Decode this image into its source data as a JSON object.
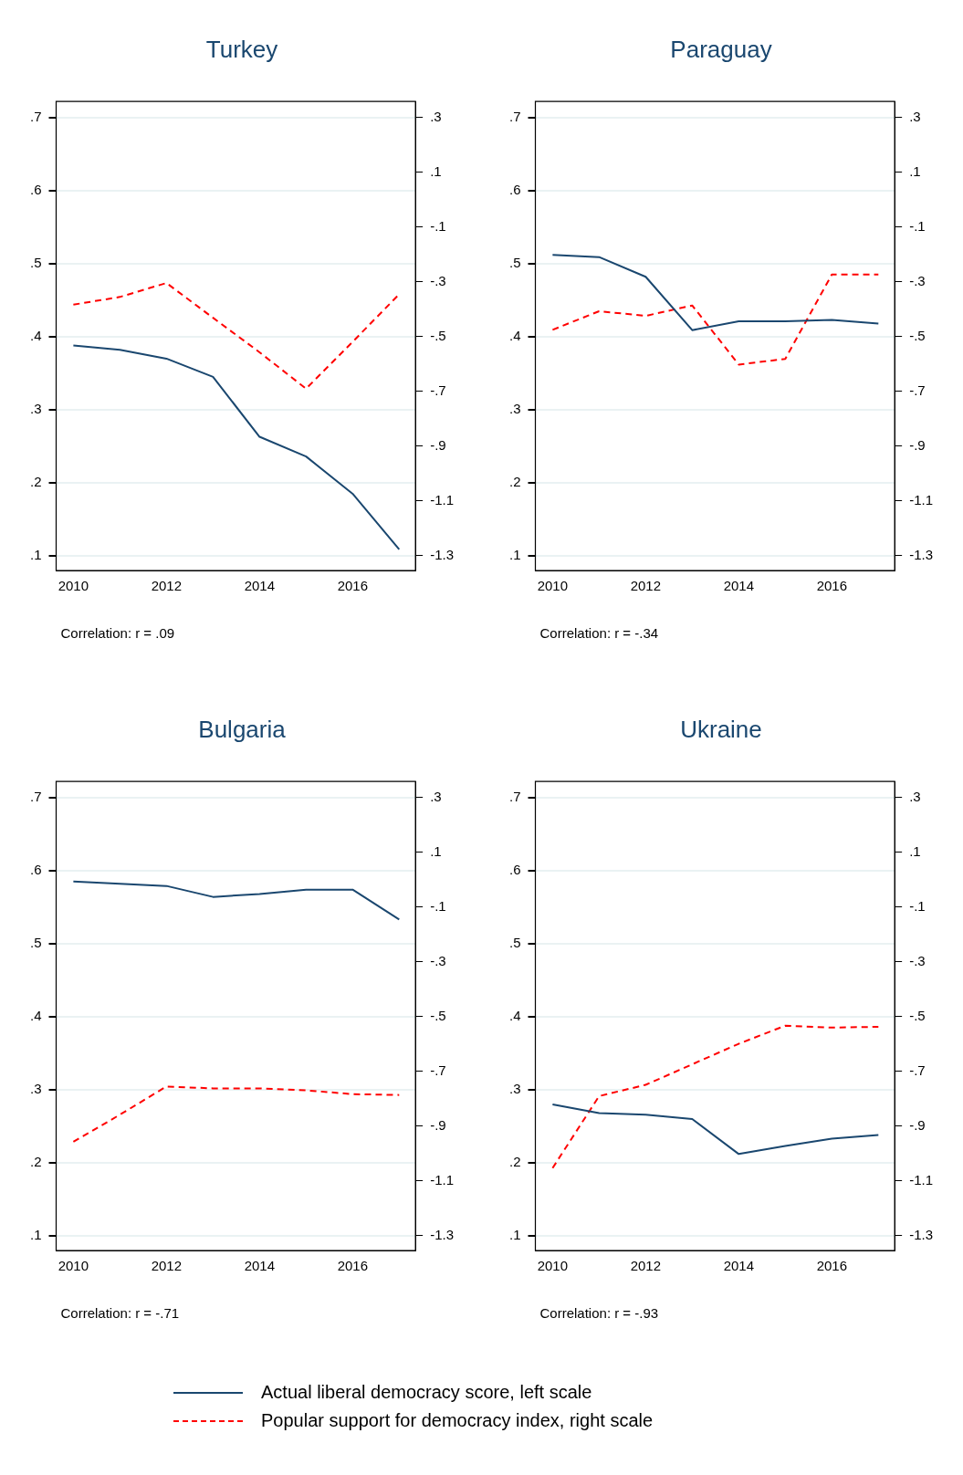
{
  "chart_data": [
    {
      "type": "line",
      "title": "Turkey",
      "x": [
        2010,
        2011,
        2012,
        2013,
        2014,
        2015,
        2016,
        2017
      ],
      "xlim": [
        2009.63,
        2017.35
      ],
      "xticks": [
        2010,
        2012,
        2014,
        2016
      ],
      "ylim": [
        0.08,
        0.722
      ],
      "yticks": [
        {
          "value": 0.1,
          "label": ".1"
        },
        {
          "value": 0.2,
          "label": ".2"
        },
        {
          "value": 0.3,
          "label": ".3"
        },
        {
          "value": 0.4,
          "label": ".4"
        },
        {
          "value": 0.5,
          "label": ".5"
        },
        {
          "value": 0.6,
          "label": ".6"
        },
        {
          "value": 0.7,
          "label": ".7"
        }
      ],
      "y2lim": [
        -1.355,
        0.358
      ],
      "y2ticks": [
        {
          "value": -1.3,
          "label": "-1.3"
        },
        {
          "value": -1.1,
          "label": "-1.1"
        },
        {
          "value": -0.9,
          "label": "-.9"
        },
        {
          "value": -0.7,
          "label": "-.7"
        },
        {
          "value": -0.5,
          "label": "-.5"
        },
        {
          "value": -0.3,
          "label": "-.3"
        },
        {
          "value": -0.1,
          "label": "-.1"
        },
        {
          "value": 0.1,
          "label": ".1"
        },
        {
          "value": 0.3,
          "label": ".3"
        }
      ],
      "grid": "y",
      "marker": "none",
      "legend": false,
      "annotations": [
        "Correlation: r = .09"
      ],
      "series": [
        {
          "color": "#1a476f",
          "line_style": "solid",
          "values": [
            0.388,
            0.382,
            0.37,
            0.345,
            0.263,
            0.236,
            0.185,
            0.109
          ]
        },
        {
          "color": "#ff0000",
          "line_style": "dashed",
          "axis": "y2",
          "values": [
            -0.384,
            -0.356,
            -0.305,
            -0.432,
            -0.558,
            -0.691,
            -0.52,
            -0.346
          ]
        }
      ]
    },
    {
      "type": "line",
      "title": "Paraguay",
      "x": [
        2010,
        2011,
        2012,
        2013,
        2014,
        2015,
        2016,
        2017
      ],
      "xlim": [
        2009.63,
        2017.35
      ],
      "xticks": [
        2010,
        2012,
        2014,
        2016
      ],
      "ylim": [
        0.08,
        0.722
      ],
      "yticks": [
        {
          "value": 0.1,
          "label": ".1"
        },
        {
          "value": 0.2,
          "label": ".2"
        },
        {
          "value": 0.3,
          "label": ".3"
        },
        {
          "value": 0.4,
          "label": ".4"
        },
        {
          "value": 0.5,
          "label": ".5"
        },
        {
          "value": 0.6,
          "label": ".6"
        },
        {
          "value": 0.7,
          "label": ".7"
        }
      ],
      "y2lim": [
        -1.355,
        0.358
      ],
      "y2ticks": [
        {
          "value": -1.3,
          "label": "-1.3"
        },
        {
          "value": -1.1,
          "label": "-1.1"
        },
        {
          "value": -0.9,
          "label": "-.9"
        },
        {
          "value": -0.7,
          "label": "-.7"
        },
        {
          "value": -0.5,
          "label": "-.5"
        },
        {
          "value": -0.3,
          "label": "-.3"
        },
        {
          "value": -0.1,
          "label": "-.1"
        },
        {
          "value": 0.1,
          "label": ".1"
        },
        {
          "value": 0.3,
          "label": ".3"
        }
      ],
      "grid": "y",
      "marker": "none",
      "legend": false,
      "annotations": [
        "Correlation: r = -.34"
      ],
      "series": [
        {
          "color": "#1a476f",
          "line_style": "solid",
          "values": [
            0.512,
            0.509,
            0.482,
            0.409,
            0.421,
            0.421,
            0.423,
            0.418
          ]
        },
        {
          "color": "#ff0000",
          "line_style": "dashed",
          "axis": "y2",
          "values": [
            -0.476,
            -0.408,
            -0.425,
            -0.387,
            -0.603,
            -0.582,
            -0.274,
            -0.274
          ]
        }
      ]
    },
    {
      "type": "line",
      "title": "Bulgaria",
      "x": [
        2010,
        2011,
        2012,
        2013,
        2014,
        2015,
        2016,
        2017
      ],
      "xlim": [
        2009.63,
        2017.35
      ],
      "xticks": [
        2010,
        2012,
        2014,
        2016
      ],
      "ylim": [
        0.08,
        0.722
      ],
      "yticks": [
        {
          "value": 0.1,
          "label": ".1"
        },
        {
          "value": 0.2,
          "label": ".2"
        },
        {
          "value": 0.3,
          "label": ".3"
        },
        {
          "value": 0.4,
          "label": ".4"
        },
        {
          "value": 0.5,
          "label": ".5"
        },
        {
          "value": 0.6,
          "label": ".6"
        },
        {
          "value": 0.7,
          "label": ".7"
        }
      ],
      "y2lim": [
        -1.355,
        0.358
      ],
      "y2ticks": [
        {
          "value": -1.3,
          "label": "-1.3"
        },
        {
          "value": -1.1,
          "label": "-1.1"
        },
        {
          "value": -0.9,
          "label": "-.9"
        },
        {
          "value": -0.7,
          "label": "-.7"
        },
        {
          "value": -0.5,
          "label": "-.5"
        },
        {
          "value": -0.3,
          "label": "-.3"
        },
        {
          "value": -0.1,
          "label": "-.1"
        },
        {
          "value": 0.1,
          "label": ".1"
        },
        {
          "value": 0.3,
          "label": ".3"
        }
      ],
      "grid": "y",
      "marker": "none",
      "legend": false,
      "annotations": [
        "Correlation: r = -.71"
      ],
      "series": [
        {
          "color": "#1a476f",
          "line_style": "solid",
          "values": [
            0.585,
            0.582,
            0.579,
            0.564,
            0.568,
            0.574,
            0.574,
            0.533
          ]
        },
        {
          "color": "#ff0000",
          "line_style": "dashed",
          "axis": "y2",
          "values": [
            -0.958,
            -0.859,
            -0.756,
            -0.763,
            -0.763,
            -0.77,
            -0.784,
            -0.787
          ]
        }
      ]
    },
    {
      "type": "line",
      "title": "Ukraine",
      "x": [
        2010,
        2011,
        2012,
        2013,
        2014,
        2015,
        2016,
        2017
      ],
      "xlim": [
        2009.63,
        2017.35
      ],
      "xticks": [
        2010,
        2012,
        2014,
        2016
      ],
      "ylim": [
        0.08,
        0.722
      ],
      "yticks": [
        {
          "value": 0.1,
          "label": ".1"
        },
        {
          "value": 0.2,
          "label": ".2"
        },
        {
          "value": 0.3,
          "label": ".3"
        },
        {
          "value": 0.4,
          "label": ".4"
        },
        {
          "value": 0.5,
          "label": ".5"
        },
        {
          "value": 0.6,
          "label": ".6"
        },
        {
          "value": 0.7,
          "label": ".7"
        }
      ],
      "y2lim": [
        -1.355,
        0.358
      ],
      "y2ticks": [
        {
          "value": -1.3,
          "label": "-1.3"
        },
        {
          "value": -1.1,
          "label": "-1.1"
        },
        {
          "value": -0.9,
          "label": "-.9"
        },
        {
          "value": -0.7,
          "label": "-.7"
        },
        {
          "value": -0.5,
          "label": "-.5"
        },
        {
          "value": -0.3,
          "label": "-.3"
        },
        {
          "value": -0.1,
          "label": "-.1"
        },
        {
          "value": 0.1,
          "label": ".1"
        },
        {
          "value": 0.3,
          "label": ".3"
        }
      ],
      "grid": "y",
      "marker": "none",
      "legend": "bottom",
      "annotations": [
        "Correlation: r = -.93"
      ],
      "series": [
        {
          "name": "Actual liberal democracy score, left scale",
          "color": "#1a476f",
          "line_style": "solid",
          "values": [
            0.28,
            0.268,
            0.266,
            0.26,
            0.212,
            0.223,
            0.233,
            0.238
          ]
        },
        {
          "name": "Popular support for democracy index, right scale",
          "color": "#ff0000",
          "line_style": "dashed",
          "axis": "y2",
          "values": [
            -1.054,
            -0.791,
            -0.75,
            -0.675,
            -0.6,
            -0.534,
            -0.541,
            -0.538
          ]
        }
      ]
    }
  ]
}
